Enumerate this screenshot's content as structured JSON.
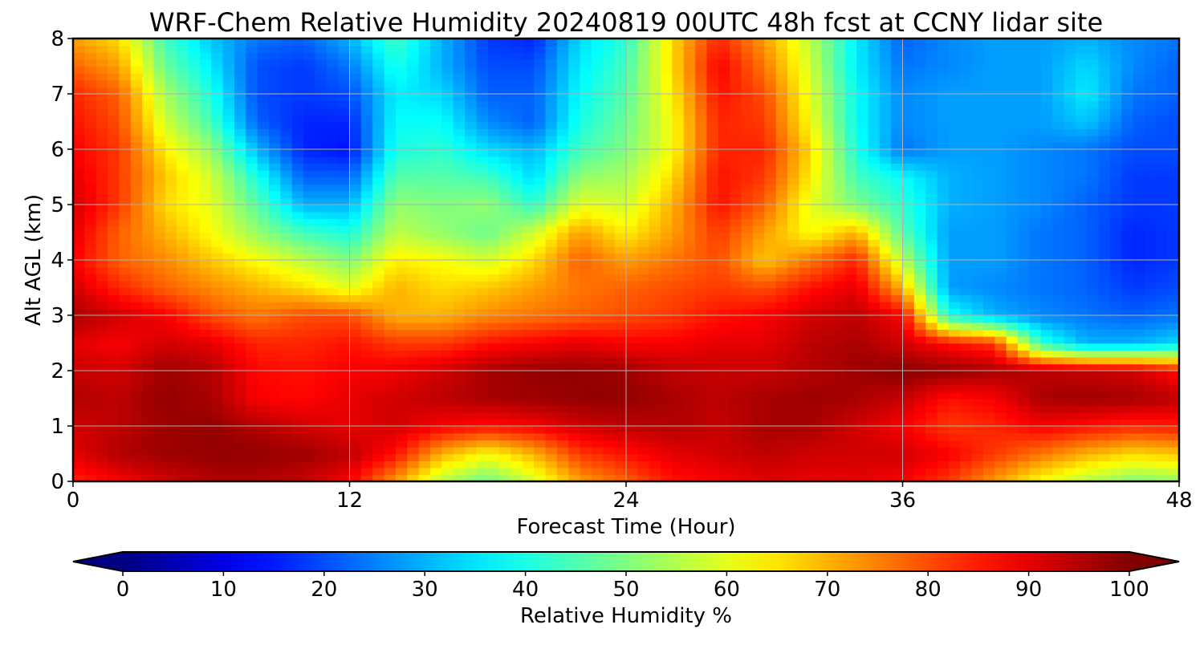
{
  "chart_data": {
    "type": "heatmap",
    "title": "WRF-Chem Relative Humidity 20240819 00UTC 48h fcst at CCNY lidar site",
    "xlabel": "Forecast Time (Hour)",
    "ylabel": "Alt AGL (km)",
    "xlim": [
      0,
      48
    ],
    "ylim": [
      0,
      8
    ],
    "xticks": [
      0,
      12,
      24,
      36,
      48
    ],
    "yticks": [
      0,
      1,
      2,
      3,
      4,
      5,
      6,
      7,
      8
    ],
    "grid": true,
    "colormap": "jet",
    "colorbar": {
      "label": "Relative Humidity %",
      "min": 0,
      "max": 100,
      "ticks": [
        0,
        10,
        20,
        30,
        40,
        50,
        60,
        70,
        80,
        90,
        100
      ],
      "extend": "both",
      "orientation": "horizontal"
    },
    "x": [
      0,
      2,
      4,
      6,
      8,
      10,
      12,
      14,
      16,
      18,
      20,
      22,
      24,
      26,
      28,
      30,
      32,
      34,
      36,
      38,
      40,
      42,
      44,
      46,
      48
    ],
    "y": [
      0,
      0.5,
      1,
      1.5,
      2,
      2.5,
      3,
      3.5,
      4,
      4.5,
      5,
      5.5,
      6,
      6.5,
      7,
      7.5,
      8
    ],
    "z": [
      [
        84,
        88,
        92,
        95,
        95,
        93,
        88,
        72,
        55,
        48,
        58,
        72,
        78,
        86,
        88,
        90,
        90,
        90,
        88,
        82,
        72,
        62,
        55,
        50,
        52
      ],
      [
        90,
        95,
        97,
        98,
        98,
        97,
        94,
        86,
        70,
        62,
        70,
        82,
        86,
        90,
        92,
        94,
        92,
        92,
        92,
        88,
        82,
        76,
        70,
        66,
        68
      ],
      [
        92,
        94,
        97,
        98,
        95,
        92,
        90,
        92,
        88,
        86,
        88,
        92,
        94,
        95,
        93,
        96,
        96,
        92,
        88,
        82,
        84,
        88,
        86,
        84,
        85
      ],
      [
        95,
        94,
        98,
        96,
        88,
        87,
        90,
        92,
        94,
        96,
        97,
        98,
        98,
        96,
        94,
        96,
        97,
        96,
        93,
        86,
        88,
        96,
        97,
        96,
        94
      ],
      [
        93,
        92,
        97,
        95,
        87,
        86,
        88,
        89,
        92,
        96,
        98,
        98,
        97,
        94,
        93,
        93,
        95,
        97,
        99,
        98,
        96,
        94,
        93,
        92,
        86
      ],
      [
        90,
        88,
        92,
        90,
        84,
        84,
        86,
        82,
        82,
        86,
        88,
        90,
        88,
        88,
        90,
        90,
        94,
        96,
        92,
        86,
        82,
        42,
        30,
        30,
        34
      ],
      [
        96,
        92,
        88,
        80,
        76,
        80,
        80,
        70,
        70,
        74,
        76,
        78,
        80,
        82,
        86,
        88,
        92,
        94,
        88,
        40,
        30,
        26,
        24,
        22,
        24
      ],
      [
        92,
        84,
        78,
        74,
        70,
        66,
        60,
        70,
        66,
        68,
        72,
        76,
        78,
        80,
        82,
        80,
        86,
        90,
        70,
        28,
        26,
        24,
        22,
        18,
        20
      ],
      [
        88,
        78,
        74,
        68,
        62,
        56,
        50,
        64,
        62,
        58,
        66,
        78,
        72,
        76,
        80,
        68,
        76,
        84,
        56,
        28,
        28,
        24,
        22,
        16,
        18
      ],
      [
        90,
        78,
        70,
        62,
        52,
        44,
        40,
        56,
        52,
        48,
        58,
        72,
        64,
        72,
        82,
        72,
        62,
        70,
        46,
        28,
        28,
        24,
        22,
        16,
        18
      ],
      [
        92,
        82,
        66,
        60,
        46,
        30,
        30,
        52,
        50,
        52,
        42,
        60,
        58,
        70,
        86,
        78,
        60,
        50,
        42,
        30,
        28,
        26,
        22,
        18,
        18
      ],
      [
        90,
        82,
        68,
        58,
        40,
        22,
        22,
        46,
        46,
        44,
        34,
        52,
        54,
        66,
        86,
        82,
        64,
        44,
        38,
        30,
        28,
        26,
        24,
        18,
        18
      ],
      [
        88,
        82,
        64,
        52,
        30,
        16,
        14,
        40,
        42,
        34,
        30,
        44,
        50,
        62,
        84,
        84,
        66,
        40,
        24,
        28,
        28,
        26,
        24,
        20,
        20
      ],
      [
        86,
        80,
        58,
        44,
        22,
        16,
        16,
        38,
        38,
        26,
        22,
        40,
        48,
        62,
        84,
        82,
        62,
        38,
        26,
        28,
        28,
        28,
        32,
        22,
        20
      ],
      [
        84,
        78,
        54,
        40,
        20,
        18,
        20,
        36,
        34,
        22,
        22,
        38,
        46,
        64,
        86,
        80,
        60,
        38,
        26,
        28,
        28,
        28,
        36,
        24,
        22
      ],
      [
        78,
        72,
        48,
        36,
        20,
        18,
        24,
        40,
        30,
        20,
        20,
        36,
        44,
        66,
        88,
        76,
        58,
        36,
        24,
        26,
        28,
        28,
        34,
        26,
        22
      ],
      [
        72,
        66,
        44,
        32,
        24,
        22,
        30,
        44,
        30,
        18,
        16,
        34,
        42,
        66,
        84,
        72,
        56,
        36,
        22,
        26,
        28,
        28,
        30,
        26,
        24
      ]
    ]
  }
}
